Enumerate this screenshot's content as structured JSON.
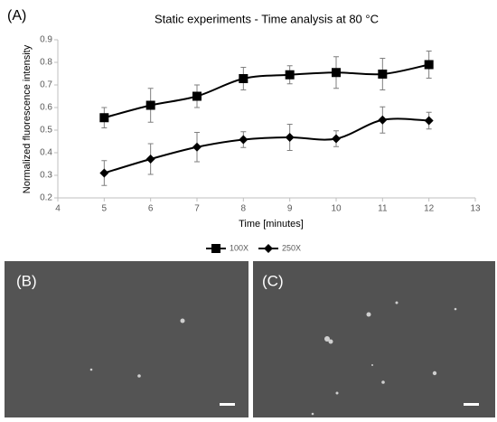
{
  "panel_label": "(A)",
  "chart_data": {
    "type": "line",
    "title": "Static experiments - Time analysis at 80 °C",
    "x_label": "Time [minutes]",
    "y_label": "Normalized fluorescence intensity",
    "x": [
      5,
      6,
      7,
      8,
      9,
      10,
      11,
      12
    ],
    "series": [
      {
        "name": "100X",
        "color": "#000000",
        "marker": "square",
        "values": [
          0.555,
          0.61,
          0.65,
          0.728,
          0.745,
          0.755,
          0.748,
          0.79
        ],
        "errors": [
          0.045,
          0.075,
          0.05,
          0.05,
          0.04,
          0.07,
          0.07,
          0.06
        ]
      },
      {
        "name": "250X",
        "color": "#000000",
        "marker": "diamond",
        "values": [
          0.31,
          0.372,
          0.425,
          0.458,
          0.468,
          0.462,
          0.545,
          0.542
        ],
        "errors": [
          0.055,
          0.068,
          0.065,
          0.035,
          0.058,
          0.035,
          0.058,
          0.037
        ]
      }
    ],
    "xlim": [
      4,
      13
    ],
    "xticks": [
      4,
      5,
      6,
      7,
      8,
      9,
      10,
      11,
      12,
      13
    ],
    "ylim": [
      0.2,
      0.9
    ],
    "yticks": [
      0.2,
      0.3,
      0.4,
      0.5,
      0.6,
      0.7,
      0.8,
      0.9
    ],
    "legend": "bottom"
  },
  "images": [
    {
      "label": "(B)"
    },
    {
      "label": "(C)"
    }
  ]
}
